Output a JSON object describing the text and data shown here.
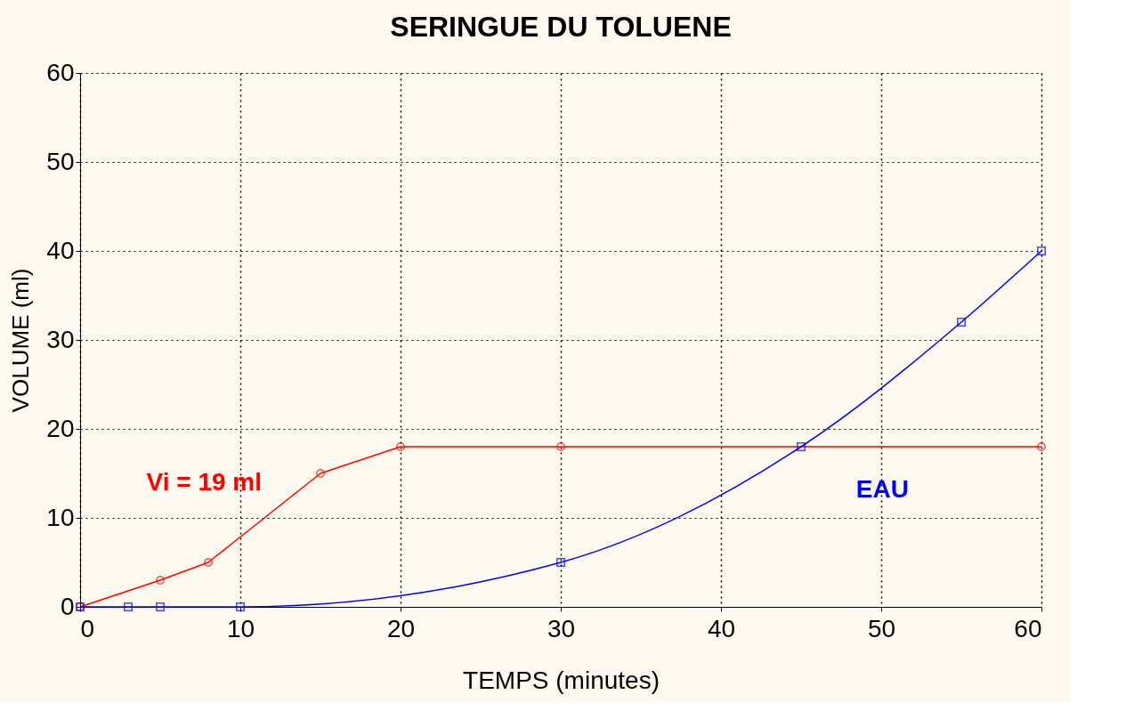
{
  "chart_data": {
    "type": "line",
    "title": "SERINGUE DU TOLUENE",
    "xlabel": "TEMPS (minutes)",
    "ylabel": "VOLUME (ml)",
    "xlim": [
      0,
      60
    ],
    "ylim": [
      0,
      60
    ],
    "xticks": [
      0,
      10,
      20,
      30,
      40,
      50,
      60
    ],
    "yticks": [
      0,
      10,
      20,
      30,
      40,
      50,
      60
    ],
    "grid": true,
    "series": [
      {
        "name": "Vi = 19 ml",
        "color": "#ff0000",
        "marker": "circle",
        "x": [
          0,
          5,
          8,
          15,
          20,
          30,
          60
        ],
        "values": [
          0,
          3,
          5,
          15,
          18,
          18,
          18
        ]
      },
      {
        "name": "EAU",
        "color": "#0000ff",
        "marker": "square",
        "x": [
          0,
          3,
          5,
          10,
          30,
          45,
          55,
          60
        ],
        "values": [
          0,
          0,
          0,
          0,
          5,
          18,
          32,
          40
        ]
      }
    ]
  }
}
